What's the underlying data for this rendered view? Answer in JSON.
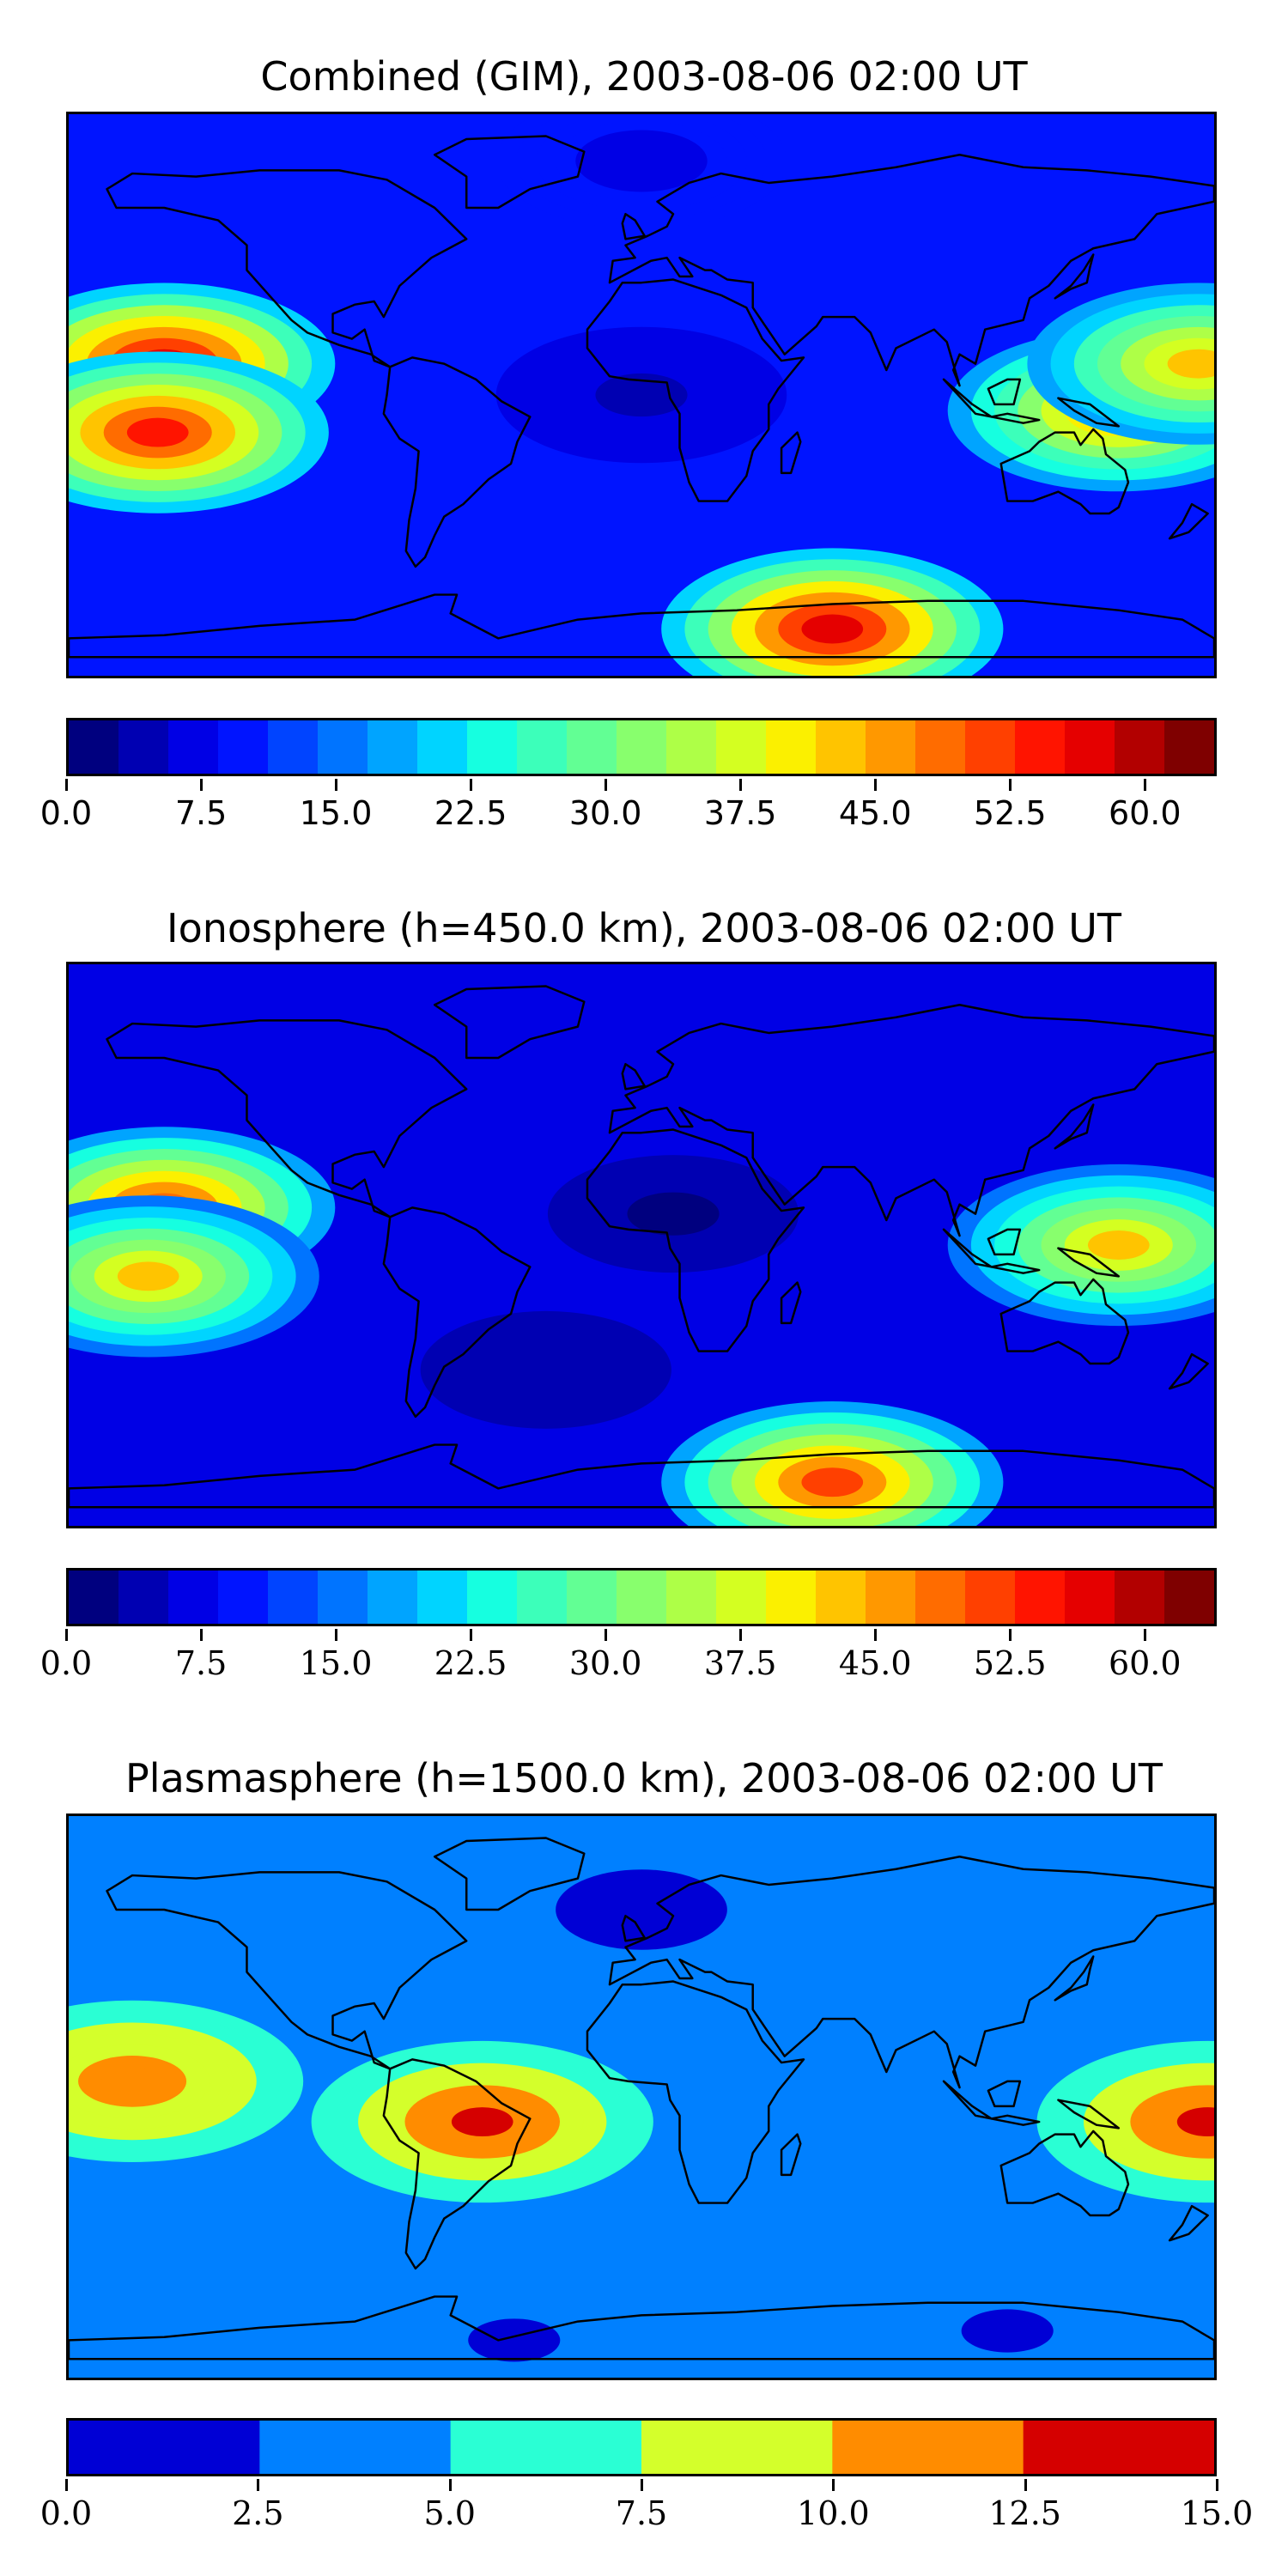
{
  "colors": {
    "jet21": [
      "#00007f",
      "#0000b2",
      "#0000e5",
      "#0014ff",
      "#0044ff",
      "#0074ff",
      "#00a4ff",
      "#00d4ff",
      "#16ffe0",
      "#3cffba",
      "#62ff94",
      "#88ff6d",
      "#aeff47",
      "#d4ff21",
      "#fbf000",
      "#ffc400",
      "#ff9800",
      "#ff6c00",
      "#ff4000",
      "#ff1400",
      "#e50000",
      "#b20000",
      "#7f0000"
    ],
    "jet6": [
      "#0000d5",
      "#0080ff",
      "#2affd4",
      "#d4ff2b",
      "#ff8c00",
      "#d50000"
    ],
    "coastline": "#000000"
  },
  "chart_data": [
    {
      "type": "heatmap",
      "title": "Combined (GIM), 2003-08-06 02:00 UT",
      "colorbar": {
        "range": [
          0.0,
          64.0
        ],
        "levels": 23,
        "tick_values": [
          0.0,
          7.5,
          15.0,
          22.5,
          30.0,
          37.5,
          45.0,
          52.5,
          60.0
        ],
        "tick_labels": [
          "0.0",
          "7.5",
          "15.0",
          "22.5",
          "30.0",
          "37.5",
          "45.0",
          "52.5",
          "60.0"
        ]
      },
      "features": [
        {
          "lon": -150,
          "lat": 10,
          "value": 58
        },
        {
          "lon": -152,
          "lat": -12,
          "value": 55
        },
        {
          "lon": 60,
          "lat": -75,
          "value": 57
        },
        {
          "lon": 150,
          "lat": -5,
          "value": 46
        },
        {
          "lon": 175,
          "lat": 10,
          "value": 42
        },
        {
          "lon": 0,
          "lat": 0,
          "value": 5
        },
        {
          "lon": 0,
          "lat": 75,
          "value": 8
        }
      ]
    },
    {
      "type": "heatmap",
      "title": "Ionosphere  (h=450.0 km), 2003-08-06 02:00 UT",
      "colorbar": {
        "range": [
          0.0,
          64.0
        ],
        "levels": 23,
        "tick_values": [
          0.0,
          7.5,
          15.0,
          22.5,
          30.0,
          37.5,
          45.0,
          52.5,
          60.0
        ],
        "tick_labels": [
          "0.0",
          "7.5",
          "15.0",
          "22.5",
          "30.0",
          "37.5",
          "45.0",
          "52.5",
          "60.0"
        ]
      },
      "features": [
        {
          "lon": -150,
          "lat": 12,
          "value": 50
        },
        {
          "lon": -155,
          "lat": -10,
          "value": 42
        },
        {
          "lon": 60,
          "lat": -76,
          "value": 52
        },
        {
          "lon": 150,
          "lat": 0,
          "value": 42
        },
        {
          "lon": 10,
          "lat": 10,
          "value": 2
        },
        {
          "lon": -30,
          "lat": -40,
          "value": 3
        }
      ]
    },
    {
      "type": "heatmap",
      "title": "Plasmasphere (h=1500.0 km), 2003-08-06 02:00 UT",
      "colorbar": {
        "range": [
          0.0,
          15.0
        ],
        "levels": 6,
        "tick_values": [
          0.0,
          2.5,
          5.0,
          7.5,
          10.0,
          12.5,
          15.0
        ],
        "tick_labels": [
          "0.0",
          "2.5",
          "5.0",
          "7.5",
          "10.0",
          "12.5",
          "15.0"
        ]
      },
      "features": [
        {
          "lon": -50,
          "lat": -8,
          "value": 13
        },
        {
          "lon": 178,
          "lat": -8,
          "value": 13
        },
        {
          "lon": -160,
          "lat": 5,
          "value": 11
        },
        {
          "lon": 0,
          "lat": 60,
          "value": 1.5
        },
        {
          "lon": -40,
          "lat": -78,
          "value": 2
        },
        {
          "lon": 115,
          "lat": -75,
          "value": 2
        }
      ]
    }
  ]
}
